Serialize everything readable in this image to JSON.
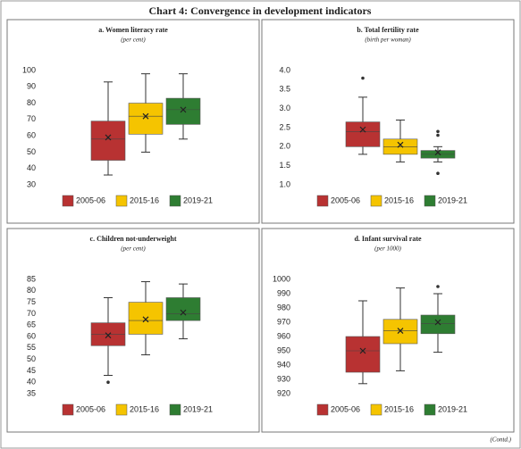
{
  "title": "Chart 4: Convergence in development indicators",
  "footnote": "(Contd.)",
  "chart_data": [
    {
      "type": "box",
      "title": "a. Women literacy rate",
      "subtitle": "(per cent)",
      "ylim": [
        30,
        100
      ],
      "yticks": [
        30,
        40,
        50,
        60,
        70,
        80,
        90,
        100
      ],
      "series": [
        {
          "name": "2005-06",
          "color": "#b83232",
          "min": 36,
          "q1": 45,
          "median": 58,
          "q3": 69,
          "max": 93,
          "mean": 59,
          "outliers": []
        },
        {
          "name": "2015-16",
          "color": "#f5c400",
          "min": 50,
          "q1": 61,
          "median": 72,
          "q3": 80,
          "max": 98,
          "mean": 72,
          "outliers": []
        },
        {
          "name": "2019-21",
          "color": "#2e7d32",
          "min": 58,
          "q1": 67,
          "median": 76,
          "q3": 83,
          "max": 98,
          "mean": 76,
          "outliers": []
        }
      ]
    },
    {
      "type": "box",
      "title": "b. Total fertility rate",
      "subtitle": "(birth per woman)",
      "ylim": [
        1,
        4
      ],
      "yticks": [
        {
          "value": 1,
          "label": "1.0"
        },
        1.5,
        {
          "value": 2,
          "label": "2.0"
        },
        2.5,
        {
          "value": 3,
          "label": "3.0"
        },
        3.5,
        {
          "value": 4,
          "label": "4.0"
        }
      ],
      "series": [
        {
          "name": "2005-06",
          "color": "#b83232",
          "min": 1.8,
          "q1": 2.0,
          "median": 2.4,
          "q3": 2.65,
          "max": 3.3,
          "mean": 2.45,
          "outliers": [
            3.8
          ]
        },
        {
          "name": "2015-16",
          "color": "#f5c400",
          "min": 1.6,
          "q1": 1.8,
          "median": 2.0,
          "q3": 2.2,
          "max": 2.7,
          "mean": 2.05,
          "outliers": []
        },
        {
          "name": "2019-21",
          "color": "#2e7d32",
          "min": 1.6,
          "q1": 1.7,
          "median": 1.8,
          "q3": 1.9,
          "max": 2.0,
          "mean": 1.85,
          "outliers": [
            2.3,
            2.4,
            1.3
          ]
        }
      ]
    },
    {
      "type": "box",
      "title": "c. Children not-underweight",
      "subtitle": "(per cent)",
      "ylim": [
        35,
        85
      ],
      "yticks": [
        35,
        40,
        45,
        50,
        55,
        60,
        65,
        70,
        75,
        80,
        85
      ],
      "series": [
        {
          "name": "2005-06",
          "color": "#b83232",
          "min": 43,
          "q1": 56,
          "median": 61,
          "q3": 66,
          "max": 77,
          "mean": 60.5,
          "outliers": [
            40
          ]
        },
        {
          "name": "2015-16",
          "color": "#f5c400",
          "min": 52,
          "q1": 61,
          "median": 67,
          "q3": 75,
          "max": 84,
          "mean": 67.5,
          "outliers": []
        },
        {
          "name": "2019-21",
          "color": "#2e7d32",
          "min": 59,
          "q1": 67,
          "median": 70,
          "q3": 77,
          "max": 83,
          "mean": 70.5,
          "outliers": []
        }
      ]
    },
    {
      "type": "box",
      "title": "d. Infant survival rate",
      "subtitle": "(per 1000)",
      "ylim": [
        920,
        1000
      ],
      "yticks": [
        920,
        930,
        940,
        950,
        960,
        970,
        980,
        990,
        1000
      ],
      "series": [
        {
          "name": "2005-06",
          "color": "#b83232",
          "min": 927,
          "q1": 935,
          "median": 950,
          "q3": 960,
          "max": 985,
          "mean": 950,
          "outliers": []
        },
        {
          "name": "2015-16",
          "color": "#f5c400",
          "min": 936,
          "q1": 955,
          "median": 964,
          "q3": 972,
          "max": 994,
          "mean": 964,
          "outliers": []
        },
        {
          "name": "2019-21",
          "color": "#2e7d32",
          "min": 949,
          "q1": 962,
          "median": 969,
          "q3": 975,
          "max": 990,
          "mean": 970,
          "outliers": [
            995
          ]
        }
      ]
    }
  ]
}
